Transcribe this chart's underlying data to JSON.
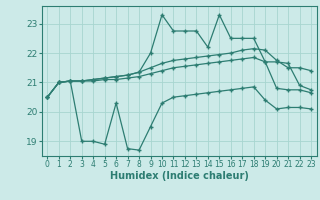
{
  "xlabel": "Humidex (Indice chaleur)",
  "x": [
    0,
    1,
    2,
    3,
    4,
    5,
    6,
    7,
    8,
    9,
    10,
    11,
    12,
    13,
    14,
    15,
    16,
    17,
    18,
    19,
    20,
    21,
    22,
    23
  ],
  "line_top": [
    20.5,
    21.0,
    21.05,
    21.05,
    21.1,
    21.15,
    21.2,
    21.25,
    21.35,
    22.0,
    23.3,
    22.75,
    22.75,
    22.75,
    22.2,
    23.3,
    22.5,
    22.5,
    22.5,
    21.7,
    21.7,
    21.65,
    20.9,
    20.75
  ],
  "line_upper_mid": [
    20.5,
    21.0,
    21.05,
    21.05,
    21.1,
    21.15,
    21.2,
    21.25,
    21.35,
    21.5,
    21.65,
    21.75,
    21.8,
    21.85,
    21.9,
    21.95,
    22.0,
    22.1,
    22.15,
    22.1,
    21.75,
    21.5,
    21.5,
    21.4
  ],
  "line_lower_mid": [
    20.5,
    21.0,
    21.05,
    21.05,
    21.05,
    21.1,
    21.1,
    21.15,
    21.2,
    21.3,
    21.4,
    21.5,
    21.55,
    21.6,
    21.65,
    21.7,
    21.75,
    21.8,
    21.85,
    21.7,
    20.8,
    20.75,
    20.75,
    20.65
  ],
  "line_bottom": [
    20.5,
    21.0,
    21.05,
    19.0,
    19.0,
    18.9,
    20.3,
    18.75,
    18.7,
    19.5,
    20.3,
    20.5,
    20.55,
    20.6,
    20.65,
    20.7,
    20.75,
    20.8,
    20.85,
    20.4,
    20.1,
    20.15,
    20.15,
    20.1
  ],
  "line_color": "#2d7d72",
  "bg_color": "#cceae8",
  "grid_color": "#a8d5d0",
  "ylim": [
    18.5,
    23.6
  ],
  "yticks": [
    19,
    20,
    21,
    22,
    23
  ],
  "xticks": [
    0,
    1,
    2,
    3,
    4,
    5,
    6,
    7,
    8,
    9,
    10,
    11,
    12,
    13,
    14,
    15,
    16,
    17,
    18,
    19,
    20,
    21,
    22,
    23
  ]
}
